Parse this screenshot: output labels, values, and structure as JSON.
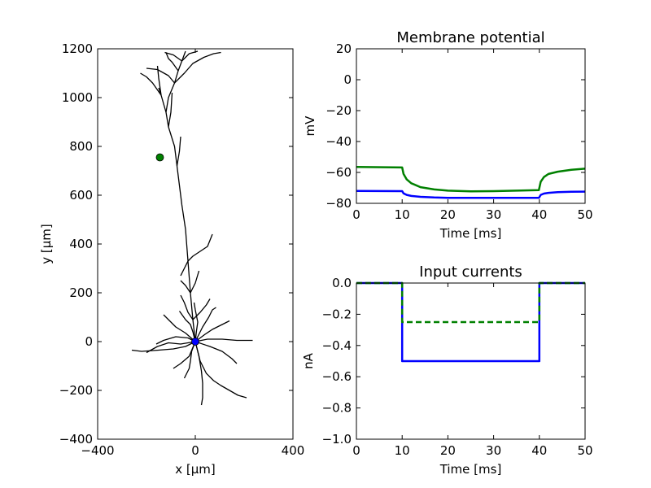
{
  "chart_data": [
    {
      "type": "line",
      "panel": "morphology",
      "xlabel": "x [μm]",
      "ylabel": "y [μm]",
      "xlim": [
        -400,
        400
      ],
      "ylim": [
        -400,
        1200
      ],
      "xticks": [
        -400,
        0,
        400
      ],
      "yticks": [
        -400,
        -200,
        0,
        200,
        400,
        600,
        800,
        1000,
        1200
      ],
      "grid": false,
      "neuron_color": "#000000",
      "dendrites": [
        [
          [
            0,
            0
          ],
          [
            -10,
            90
          ],
          [
            -20,
            200
          ],
          [
            -30,
            330
          ],
          [
            -40,
            460
          ],
          [
            -55,
            560
          ],
          [
            -65,
            640
          ],
          [
            -75,
            720
          ],
          [
            -85,
            800
          ],
          [
            -110,
            880
          ],
          [
            -120,
            940
          ],
          [
            -140,
            1010
          ],
          [
            -150,
            1040
          ]
        ],
        [
          [
            -140,
            1010
          ],
          [
            -175,
            1060
          ],
          [
            -200,
            1085
          ],
          [
            -225,
            1100
          ]
        ],
        [
          [
            -140,
            1010
          ],
          [
            -150,
            1080
          ],
          [
            -155,
            1130
          ]
        ],
        [
          [
            -120,
            940
          ],
          [
            -110,
            1000
          ],
          [
            -85,
            1060
          ],
          [
            -70,
            1110
          ],
          [
            -55,
            1150
          ],
          [
            -40,
            1190
          ]
        ],
        [
          [
            -85,
            1060
          ],
          [
            -45,
            1100
          ],
          [
            -10,
            1140
          ],
          [
            35,
            1165
          ],
          [
            75,
            1180
          ],
          [
            105,
            1185
          ]
        ],
        [
          [
            -70,
            1110
          ],
          [
            -95,
            1145
          ],
          [
            -110,
            1160
          ],
          [
            -120,
            1185
          ]
        ],
        [
          [
            -55,
            1150
          ],
          [
            -25,
            1180
          ],
          [
            10,
            1190
          ]
        ],
        [
          [
            -85,
            1060
          ],
          [
            -110,
            1090
          ],
          [
            -155,
            1115
          ],
          [
            -200,
            1120
          ]
        ],
        [
          [
            -55,
            1150
          ],
          [
            -90,
            1175
          ],
          [
            -125,
            1185
          ]
        ],
        [
          [
            -110,
            880
          ],
          [
            -100,
            940
          ],
          [
            -95,
            1020
          ]
        ],
        [
          [
            -75,
            720
          ],
          [
            -65,
            780
          ],
          [
            -60,
            840
          ]
        ],
        [
          [
            -10,
            90
          ],
          [
            -30,
            120
          ],
          [
            -45,
            160
          ],
          [
            -60,
            190
          ]
        ],
        [
          [
            -10,
            90
          ],
          [
            20,
            120
          ],
          [
            45,
            150
          ],
          [
            60,
            175
          ]
        ],
        [
          [
            -20,
            200
          ],
          [
            -40,
            230
          ],
          [
            -60,
            250
          ]
        ],
        [
          [
            -20,
            200
          ],
          [
            0,
            240
          ],
          [
            15,
            290
          ]
        ],
        [
          [
            -30,
            330
          ],
          [
            -10,
            350
          ],
          [
            20,
            370
          ],
          [
            50,
            390
          ],
          [
            70,
            440
          ]
        ],
        [
          [
            -30,
            330
          ],
          [
            -45,
            300
          ],
          [
            -60,
            270
          ]
        ],
        [
          [
            0,
            0
          ],
          [
            -40,
            -20
          ],
          [
            -90,
            -30
          ],
          [
            -150,
            -35
          ],
          [
            -220,
            -40
          ],
          [
            -260,
            -35
          ]
        ],
        [
          [
            0,
            0
          ],
          [
            -30,
            15
          ],
          [
            -80,
            20
          ],
          [
            -130,
            5
          ],
          [
            -160,
            -10
          ]
        ],
        [
          [
            0,
            0
          ],
          [
            -40,
            35
          ],
          [
            -80,
            60
          ],
          [
            -110,
            90
          ],
          [
            -130,
            110
          ]
        ],
        [
          [
            0,
            0
          ],
          [
            -15,
            -40
          ],
          [
            -20,
            -80
          ],
          [
            -25,
            -110
          ],
          [
            -45,
            -150
          ]
        ],
        [
          [
            0,
            0
          ],
          [
            10,
            -40
          ],
          [
            20,
            -80
          ],
          [
            45,
            -130
          ],
          [
            75,
            -160
          ],
          [
            105,
            -180
          ],
          [
            140,
            -200
          ],
          [
            175,
            -220
          ],
          [
            210,
            -230
          ]
        ],
        [
          [
            0,
            0
          ],
          [
            15,
            -60
          ],
          [
            25,
            -120
          ],
          [
            30,
            -170
          ],
          [
            30,
            -230
          ],
          [
            25,
            -260
          ]
        ],
        [
          [
            0,
            0
          ],
          [
            50,
            10
          ],
          [
            110,
            10
          ],
          [
            170,
            5
          ],
          [
            235,
            5
          ]
        ],
        [
          [
            0,
            0
          ],
          [
            40,
            30
          ],
          [
            70,
            50
          ],
          [
            110,
            70
          ],
          [
            140,
            85
          ]
        ],
        [
          [
            0,
            0
          ],
          [
            30,
            60
          ],
          [
            55,
            100
          ],
          [
            70,
            130
          ],
          [
            85,
            140
          ]
        ],
        [
          [
            0,
            0
          ],
          [
            -60,
            -10
          ],
          [
            -110,
            -5
          ],
          [
            -155,
            -20
          ],
          [
            -200,
            -45
          ]
        ],
        [
          [
            0,
            0
          ],
          [
            -10,
            40
          ],
          [
            -20,
            70
          ],
          [
            -40,
            90
          ],
          [
            -65,
            125
          ]
        ],
        [
          [
            0,
            0
          ],
          [
            60,
            -20
          ],
          [
            110,
            -40
          ],
          [
            150,
            -70
          ],
          [
            170,
            -90
          ]
        ],
        [
          [
            0,
            0
          ],
          [
            -25,
            -60
          ],
          [
            -60,
            -90
          ],
          [
            -90,
            -110
          ]
        ],
        [
          [
            0,
            0
          ],
          [
            5,
            45
          ],
          [
            10,
            80
          ],
          [
            0,
            130
          ],
          [
            -5,
            160
          ]
        ]
      ],
      "markers": [
        {
          "x": -145,
          "y": 755,
          "color": "#008000"
        },
        {
          "x": 0,
          "y": 0,
          "color": "#0000ff"
        }
      ]
    },
    {
      "type": "line",
      "panel": "membrane",
      "title": "Membrane potential",
      "xlabel": "Time [ms]",
      "ylabel": "mV",
      "xlim": [
        0,
        50
      ],
      "ylim": [
        -80,
        20
      ],
      "xticks": [
        0,
        10,
        20,
        30,
        40,
        50
      ],
      "yticks": [
        -80,
        -60,
        -40,
        -20,
        0,
        20
      ],
      "grid": false,
      "series": [
        {
          "color": "#008000",
          "x": [
            0,
            10,
            10.3,
            11,
            12,
            14,
            17,
            20,
            25,
            30,
            35,
            39.9,
            40,
            40.3,
            41,
            42,
            44,
            47,
            50
          ],
          "y": [
            -56.5,
            -56.8,
            -61,
            -64.5,
            -67,
            -69.5,
            -71,
            -71.8,
            -72.2,
            -72.1,
            -71.8,
            -71.5,
            -70,
            -66,
            -63,
            -61,
            -59.5,
            -58.3,
            -57.6
          ]
        },
        {
          "color": "#0000ff",
          "x": [
            0,
            10,
            10.3,
            11,
            12,
            14,
            17,
            20,
            25,
            30,
            35,
            39.9,
            40,
            40.3,
            41,
            42,
            44,
            47,
            50
          ],
          "y": [
            -72,
            -72.1,
            -73.5,
            -74.5,
            -75.2,
            -75.8,
            -76.2,
            -76.4,
            -76.5,
            -76.5,
            -76.5,
            -76.5,
            -76,
            -74.5,
            -73.7,
            -73.2,
            -72.8,
            -72.5,
            -72.4
          ]
        }
      ]
    },
    {
      "type": "line",
      "panel": "currents",
      "title": "Input currents",
      "xlabel": "Time [ms]",
      "ylabel": "nA",
      "xlim": [
        0,
        50
      ],
      "ylim": [
        -1.0,
        0.0
      ],
      "xticks": [
        0,
        10,
        20,
        30,
        40,
        50
      ],
      "yticks": [
        -1.0,
        -0.8,
        -0.6,
        -0.4,
        -0.2,
        0.0
      ],
      "ytick_labels": [
        "−1.0",
        "−0.8",
        "−0.6",
        "−0.4",
        "−0.2",
        "0.0"
      ],
      "grid": false,
      "series": [
        {
          "color": "#0000ff",
          "dash": "solid",
          "x": [
            0,
            10,
            10,
            40,
            40,
            50
          ],
          "y": [
            0,
            0,
            -0.5,
            -0.5,
            0,
            0
          ]
        },
        {
          "color": "#008000",
          "dash": "dashed",
          "x": [
            0,
            10,
            10,
            40,
            40,
            50
          ],
          "y": [
            0,
            0,
            -0.25,
            -0.25,
            0,
            0
          ]
        }
      ]
    }
  ]
}
